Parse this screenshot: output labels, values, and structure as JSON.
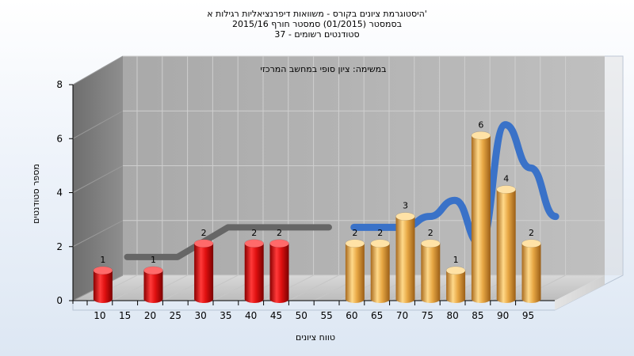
{
  "chart_data": {
    "type": "bar",
    "title": "היסטוגרמת ציונים בקורס - משוואות דיפרנציאליות רגילות א'",
    "subtitle": "בסמסטר  (01/2015)  סמסטר חורף  2015/16",
    "subtitle2": "סטודנטים רשומים - 37",
    "annotation": "במשימה: ציון סופי במחשב המרכזי",
    "xlabel": "טווח ציונים",
    "ylabel": "מספר סטודנטים",
    "ylim": [
      0,
      8
    ],
    "yticks": [
      0,
      2,
      4,
      6,
      8
    ],
    "xticks": [
      "10",
      "15",
      "20",
      "25",
      "30",
      "35",
      "40",
      "45",
      "50",
      "55",
      "60",
      "65",
      "70",
      "75",
      "80",
      "85",
      "90",
      "95"
    ],
    "grid": true,
    "bars": [
      {
        "x": "10",
        "value": 1,
        "color": "red"
      },
      {
        "x": "20",
        "value": 1,
        "color": "red"
      },
      {
        "x": "30",
        "value": 2,
        "color": "red"
      },
      {
        "x": "40",
        "value": 2,
        "color": "red"
      },
      {
        "x": "45",
        "value": 2,
        "color": "red"
      },
      {
        "x": "60",
        "value": 2,
        "color": "gold"
      },
      {
        "x": "65",
        "value": 2,
        "color": "gold"
      },
      {
        "x": "70",
        "value": 3,
        "color": "gold"
      },
      {
        "x": "75",
        "value": 2,
        "color": "gold"
      },
      {
        "x": "80",
        "value": 1,
        "color": "gold"
      },
      {
        "x": "85",
        "value": 6,
        "color": "gold"
      },
      {
        "x": "90",
        "value": 4,
        "color": "gold"
      },
      {
        "x": "95",
        "value": 2,
        "color": "gold"
      }
    ],
    "colors": {
      "red": "#e01818",
      "gold": "#e8a845",
      "line_gray": "#666666",
      "line_blue": "#3a72c8"
    }
  }
}
